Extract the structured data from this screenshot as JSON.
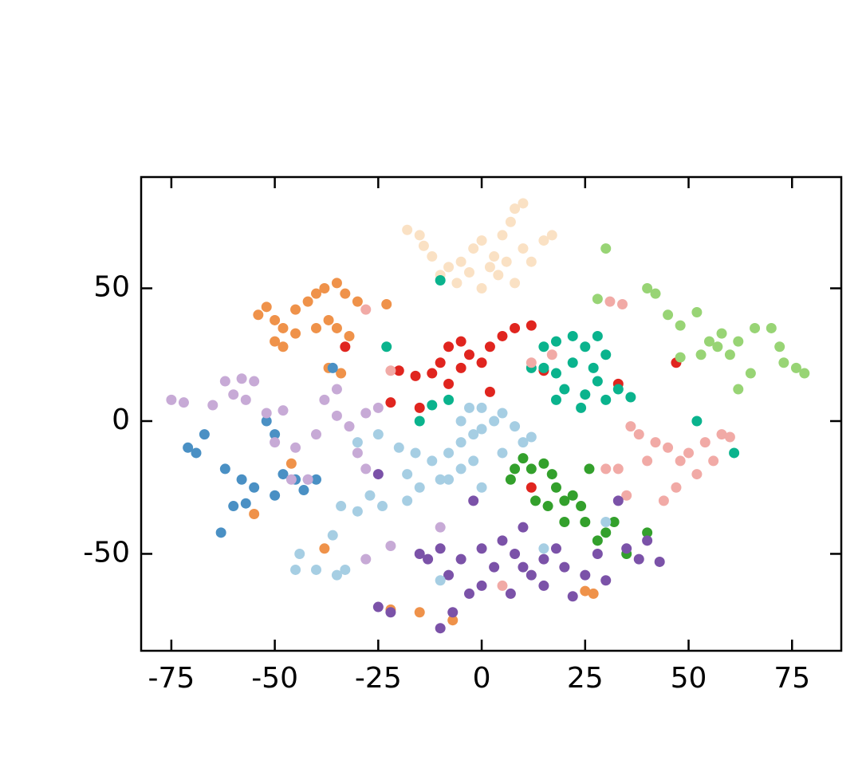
{
  "chart_data": {
    "type": "scatter",
    "xlim": [
      -82.3,
      86.9
    ],
    "ylim": [
      -86.5,
      91.9
    ],
    "xticks": [
      -75,
      -50,
      -25,
      0,
      25,
      50,
      75
    ],
    "yticks": [
      -50,
      0,
      50
    ],
    "series": [
      {
        "color": "#fae1c4",
        "x": [
          -18,
          -15,
          -12,
          -8,
          -5,
          -2,
          0,
          3,
          5,
          8,
          10,
          7,
          -10,
          -6,
          0,
          4,
          8,
          12,
          15,
          17,
          -3,
          2,
          6,
          -14,
          10
        ],
        "values": [
          72,
          70,
          62,
          58,
          60,
          65,
          68,
          62,
          70,
          80,
          82,
          75,
          55,
          52,
          50,
          55,
          52,
          60,
          68,
          70,
          56,
          58,
          60,
          66,
          65
        ]
      },
      {
        "color": "#ef924a",
        "x": [
          -54,
          -52,
          -50,
          -48,
          -45,
          -42,
          -40,
          -38,
          -35,
          -33,
          -30,
          -37,
          -40,
          -45,
          -50,
          -48,
          -35,
          -32,
          -23,
          -37,
          -34,
          -22,
          -15,
          -7,
          -38,
          -55,
          -46,
          27,
          25
        ],
        "values": [
          40,
          43,
          38,
          35,
          42,
          45,
          48,
          50,
          52,
          48,
          45,
          38,
          35,
          33,
          30,
          28,
          35,
          32,
          44,
          20,
          18,
          -71,
          -72,
          -75,
          -48,
          -35,
          -16,
          -65,
          -64
        ]
      },
      {
        "color": "#e0251f",
        "x": [
          -16,
          -12,
          -10,
          -8,
          -5,
          -3,
          0,
          -5,
          2,
          5,
          8,
          12,
          -8,
          -15,
          -33,
          -22,
          12,
          33,
          47,
          2,
          -20,
          15
        ],
        "values": [
          17,
          18,
          22,
          28,
          30,
          25,
          22,
          20,
          28,
          32,
          35,
          36,
          14,
          5,
          28,
          7,
          -25,
          14,
          22,
          11,
          19,
          19
        ]
      },
      {
        "color": "#0ab38d",
        "x": [
          15,
          18,
          22,
          25,
          28,
          30,
          27,
          22,
          18,
          15,
          20,
          25,
          30,
          33,
          36,
          24,
          18,
          -12,
          -8,
          -23,
          -10,
          -15,
          52,
          61,
          12,
          28
        ],
        "values": [
          28,
          30,
          32,
          28,
          32,
          25,
          20,
          22,
          18,
          20,
          12,
          10,
          8,
          12,
          9,
          5,
          8,
          6,
          8,
          28,
          53,
          0,
          0,
          -12,
          20,
          15
        ]
      },
      {
        "color": "#98d475",
        "x": [
          30,
          40,
          42,
          45,
          48,
          52,
          55,
          58,
          60,
          62,
          65,
          62,
          70,
          72,
          76,
          78,
          73,
          48,
          53,
          57,
          66,
          28
        ],
        "values": [
          65,
          50,
          48,
          40,
          36,
          41,
          30,
          33,
          25,
          30,
          18,
          12,
          35,
          28,
          20,
          18,
          22,
          24,
          25,
          28,
          35,
          46
        ]
      },
      {
        "color": "#f1aaa6",
        "x": [
          36,
          38,
          42,
          45,
          48,
          50,
          54,
          58,
          56,
          52,
          47,
          44,
          35,
          30,
          33,
          40,
          60,
          31,
          34,
          17,
          12,
          5,
          -22,
          -28
        ],
        "values": [
          -2,
          -5,
          -8,
          -10,
          -15,
          -12,
          -8,
          -5,
          -15,
          -20,
          -25,
          -30,
          -28,
          -18,
          -18,
          -15,
          -6,
          45,
          44,
          25,
          22,
          -62,
          19,
          42
        ]
      },
      {
        "color": "#33a02c",
        "x": [
          8,
          12,
          15,
          17,
          18,
          20,
          22,
          24,
          25,
          20,
          16,
          13,
          7,
          30,
          32,
          28,
          40,
          35,
          10,
          26
        ],
        "values": [
          -18,
          -18,
          -16,
          -20,
          -25,
          -30,
          -28,
          -32,
          -38,
          -38,
          -32,
          -30,
          -22,
          -42,
          -38,
          -45,
          -42,
          -50,
          -14,
          -18
        ]
      },
      {
        "color": "#7b52a8",
        "x": [
          -25,
          -22,
          -10,
          -7,
          -15,
          -10,
          -5,
          0,
          3,
          5,
          8,
          10,
          12,
          15,
          18,
          20,
          25,
          28,
          30,
          35,
          38,
          43,
          0,
          -3,
          -8,
          7,
          15,
          22,
          33,
          -25,
          -2,
          10,
          -13,
          40
        ],
        "values": [
          -70,
          -72,
          -78,
          -72,
          -50,
          -48,
          -52,
          -48,
          -55,
          -45,
          -50,
          -55,
          -58,
          -52,
          -48,
          -55,
          -58,
          -50,
          -60,
          -48,
          -52,
          -53,
          -62,
          -65,
          -58,
          -65,
          -62,
          -66,
          -30,
          -20,
          -30,
          -40,
          -52,
          -45
        ]
      },
      {
        "color": "#a6cee3",
        "x": [
          -20,
          -16,
          -12,
          -8,
          -5,
          -2,
          0,
          3,
          5,
          8,
          10,
          12,
          -5,
          -3,
          0,
          5,
          -2,
          -18,
          -15,
          -10,
          -5,
          -25,
          -30,
          -27,
          -24,
          -34,
          -30,
          -44,
          -40,
          -35,
          -33,
          -45,
          -36,
          -18,
          -10,
          15,
          30,
          -42,
          -8,
          0
        ],
        "values": [
          -10,
          -12,
          -15,
          -12,
          -8,
          -5,
          -3,
          0,
          3,
          -2,
          -8,
          -6,
          0,
          5,
          5,
          -12,
          -15,
          -20,
          -25,
          -22,
          -18,
          -5,
          -8,
          -28,
          -32,
          -32,
          -34,
          -50,
          -56,
          -58,
          -56,
          -56,
          -43,
          -30,
          -60,
          -48,
          -38,
          -22,
          -22,
          -25
        ]
      },
      {
        "color": "#4a90c4",
        "x": [
          -71,
          -69,
          -67,
          -62,
          -58,
          -55,
          -50,
          -48,
          -45,
          -43,
          -60,
          -57,
          -63,
          -50,
          -52,
          -40,
          -36
        ],
        "values": [
          -10,
          -12,
          -5,
          -18,
          -22,
          -25,
          -28,
          -20,
          -22,
          -26,
          -32,
          -31,
          -42,
          -5,
          0,
          -22,
          20
        ]
      },
      {
        "color": "#c7aad6",
        "x": [
          -75,
          -72,
          -65,
          -62,
          -58,
          -55,
          -60,
          -57,
          -52,
          -48,
          -50,
          -45,
          -40,
          -35,
          -32,
          -30,
          -28,
          -38,
          -35,
          -25,
          -28,
          -46,
          -28,
          -22,
          -10,
          -42
        ],
        "values": [
          8,
          7,
          6,
          15,
          16,
          15,
          10,
          8,
          3,
          4,
          -8,
          -10,
          -5,
          2,
          -2,
          -12,
          -18,
          8,
          12,
          5,
          3,
          -22,
          -52,
          -47,
          -40,
          -22
        ]
      }
    ]
  }
}
